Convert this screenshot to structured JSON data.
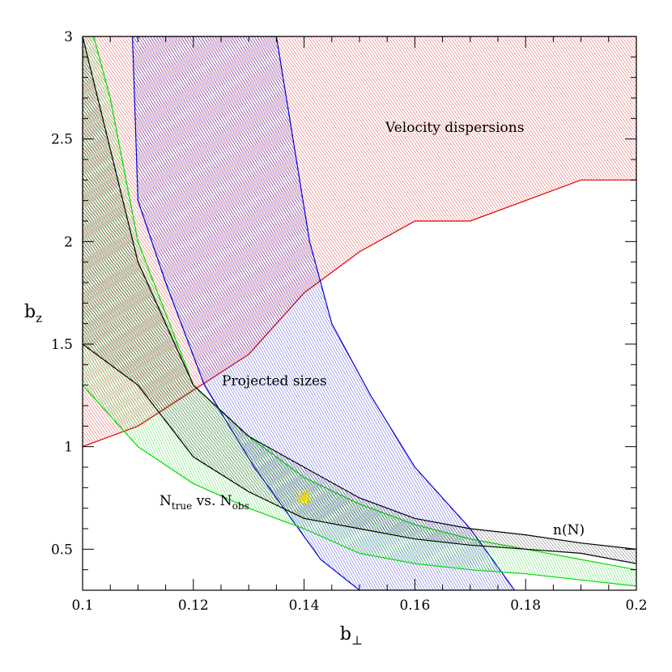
{
  "chart_data": {
    "type": "area",
    "xlabel": "b",
    "xlabel_sub": "⊥",
    "ylabel": "b",
    "ylabel_sub": "z",
    "xlim": [
      0.1,
      0.2
    ],
    "ylim": [
      0.3,
      3.0
    ],
    "xticks": [
      0.1,
      0.12,
      0.14,
      0.16,
      0.18,
      0.2
    ],
    "xtick_labels": [
      "0.1",
      "0.12",
      "0.14",
      "0.16",
      "0.18",
      "0.2"
    ],
    "yticks": [
      0.5,
      1,
      1.5,
      2,
      2.5,
      3
    ],
    "ytick_labels": [
      "0.5",
      "1",
      "1.5",
      "2",
      "2.5",
      "3"
    ],
    "grid": false,
    "regions": [
      {
        "name": "Velocity dispersions",
        "color": "#dd0000",
        "outline": [
          [
            0.1,
            1.0
          ],
          [
            0.11,
            1.1
          ],
          [
            0.13,
            1.45
          ],
          [
            0.14,
            1.75
          ],
          [
            0.15,
            1.95
          ],
          [
            0.16,
            2.1
          ],
          [
            0.17,
            2.1
          ],
          [
            0.18,
            2.2
          ],
          [
            0.19,
            2.3
          ],
          [
            0.2,
            2.3
          ],
          [
            0.2,
            3.0
          ],
          [
            0.1,
            3.0
          ]
        ]
      },
      {
        "name": "Projected sizes",
        "color": "#0000dd",
        "outline": [
          [
            0.109,
            3.0
          ],
          [
            0.135,
            3.0
          ],
          [
            0.141,
            2.0
          ],
          [
            0.145,
            1.6
          ],
          [
            0.152,
            1.25
          ],
          [
            0.16,
            0.9
          ],
          [
            0.17,
            0.6
          ],
          [
            0.178,
            0.3
          ],
          [
            0.15,
            0.3
          ],
          [
            0.143,
            0.45
          ],
          [
            0.131,
            0.9
          ],
          [
            0.122,
            1.3
          ],
          [
            0.115,
            1.8
          ],
          [
            0.11,
            2.2
          ]
        ]
      },
      {
        "name": "N_true vs. N_obs",
        "color": "#00dd00",
        "outline": [
          [
            0.1,
            1.3
          ],
          [
            0.11,
            1.0
          ],
          [
            0.12,
            0.82
          ],
          [
            0.13,
            0.7
          ],
          [
            0.14,
            0.6
          ],
          [
            0.15,
            0.48
          ],
          [
            0.16,
            0.43
          ],
          [
            0.17,
            0.4
          ],
          [
            0.18,
            0.38
          ],
          [
            0.19,
            0.35
          ],
          [
            0.2,
            0.32
          ],
          [
            0.2,
            0.4
          ],
          [
            0.19,
            0.45
          ],
          [
            0.18,
            0.5
          ],
          [
            0.17,
            0.55
          ],
          [
            0.16,
            0.62
          ],
          [
            0.15,
            0.72
          ],
          [
            0.14,
            0.85
          ],
          [
            0.13,
            1.05
          ],
          [
            0.12,
            1.3
          ],
          [
            0.11,
            2.0
          ],
          [
            0.105,
            2.7
          ],
          [
            0.102,
            3.0
          ],
          [
            0.1,
            3.0
          ]
        ]
      },
      {
        "name": "n(N)",
        "color": "#000000",
        "outline": [
          [
            0.1,
            1.5
          ],
          [
            0.11,
            1.3
          ],
          [
            0.12,
            0.95
          ],
          [
            0.13,
            0.78
          ],
          [
            0.14,
            0.65
          ],
          [
            0.15,
            0.6
          ],
          [
            0.16,
            0.55
          ],
          [
            0.17,
            0.52
          ],
          [
            0.18,
            0.5
          ],
          [
            0.19,
            0.48
          ],
          [
            0.2,
            0.43
          ],
          [
            0.2,
            0.5
          ],
          [
            0.19,
            0.53
          ],
          [
            0.18,
            0.57
          ],
          [
            0.17,
            0.6
          ],
          [
            0.16,
            0.65
          ],
          [
            0.15,
            0.75
          ],
          [
            0.14,
            0.9
          ],
          [
            0.13,
            1.05
          ],
          [
            0.12,
            1.3
          ],
          [
            0.11,
            1.9
          ],
          [
            0.1,
            3.0
          ]
        ]
      }
    ],
    "best_fit": {
      "x": 0.14,
      "y": 0.75,
      "marker": "star",
      "color": "#e8d800"
    },
    "annotations": {
      "velocity": "Velocity dispersions",
      "projected": "Projected sizes",
      "ntrue_main": "N",
      "ntrue_sub": "true",
      "ntrue_vs": " vs. N",
      "ntrue_sub2": "obs",
      "nN": "n(N)"
    }
  }
}
